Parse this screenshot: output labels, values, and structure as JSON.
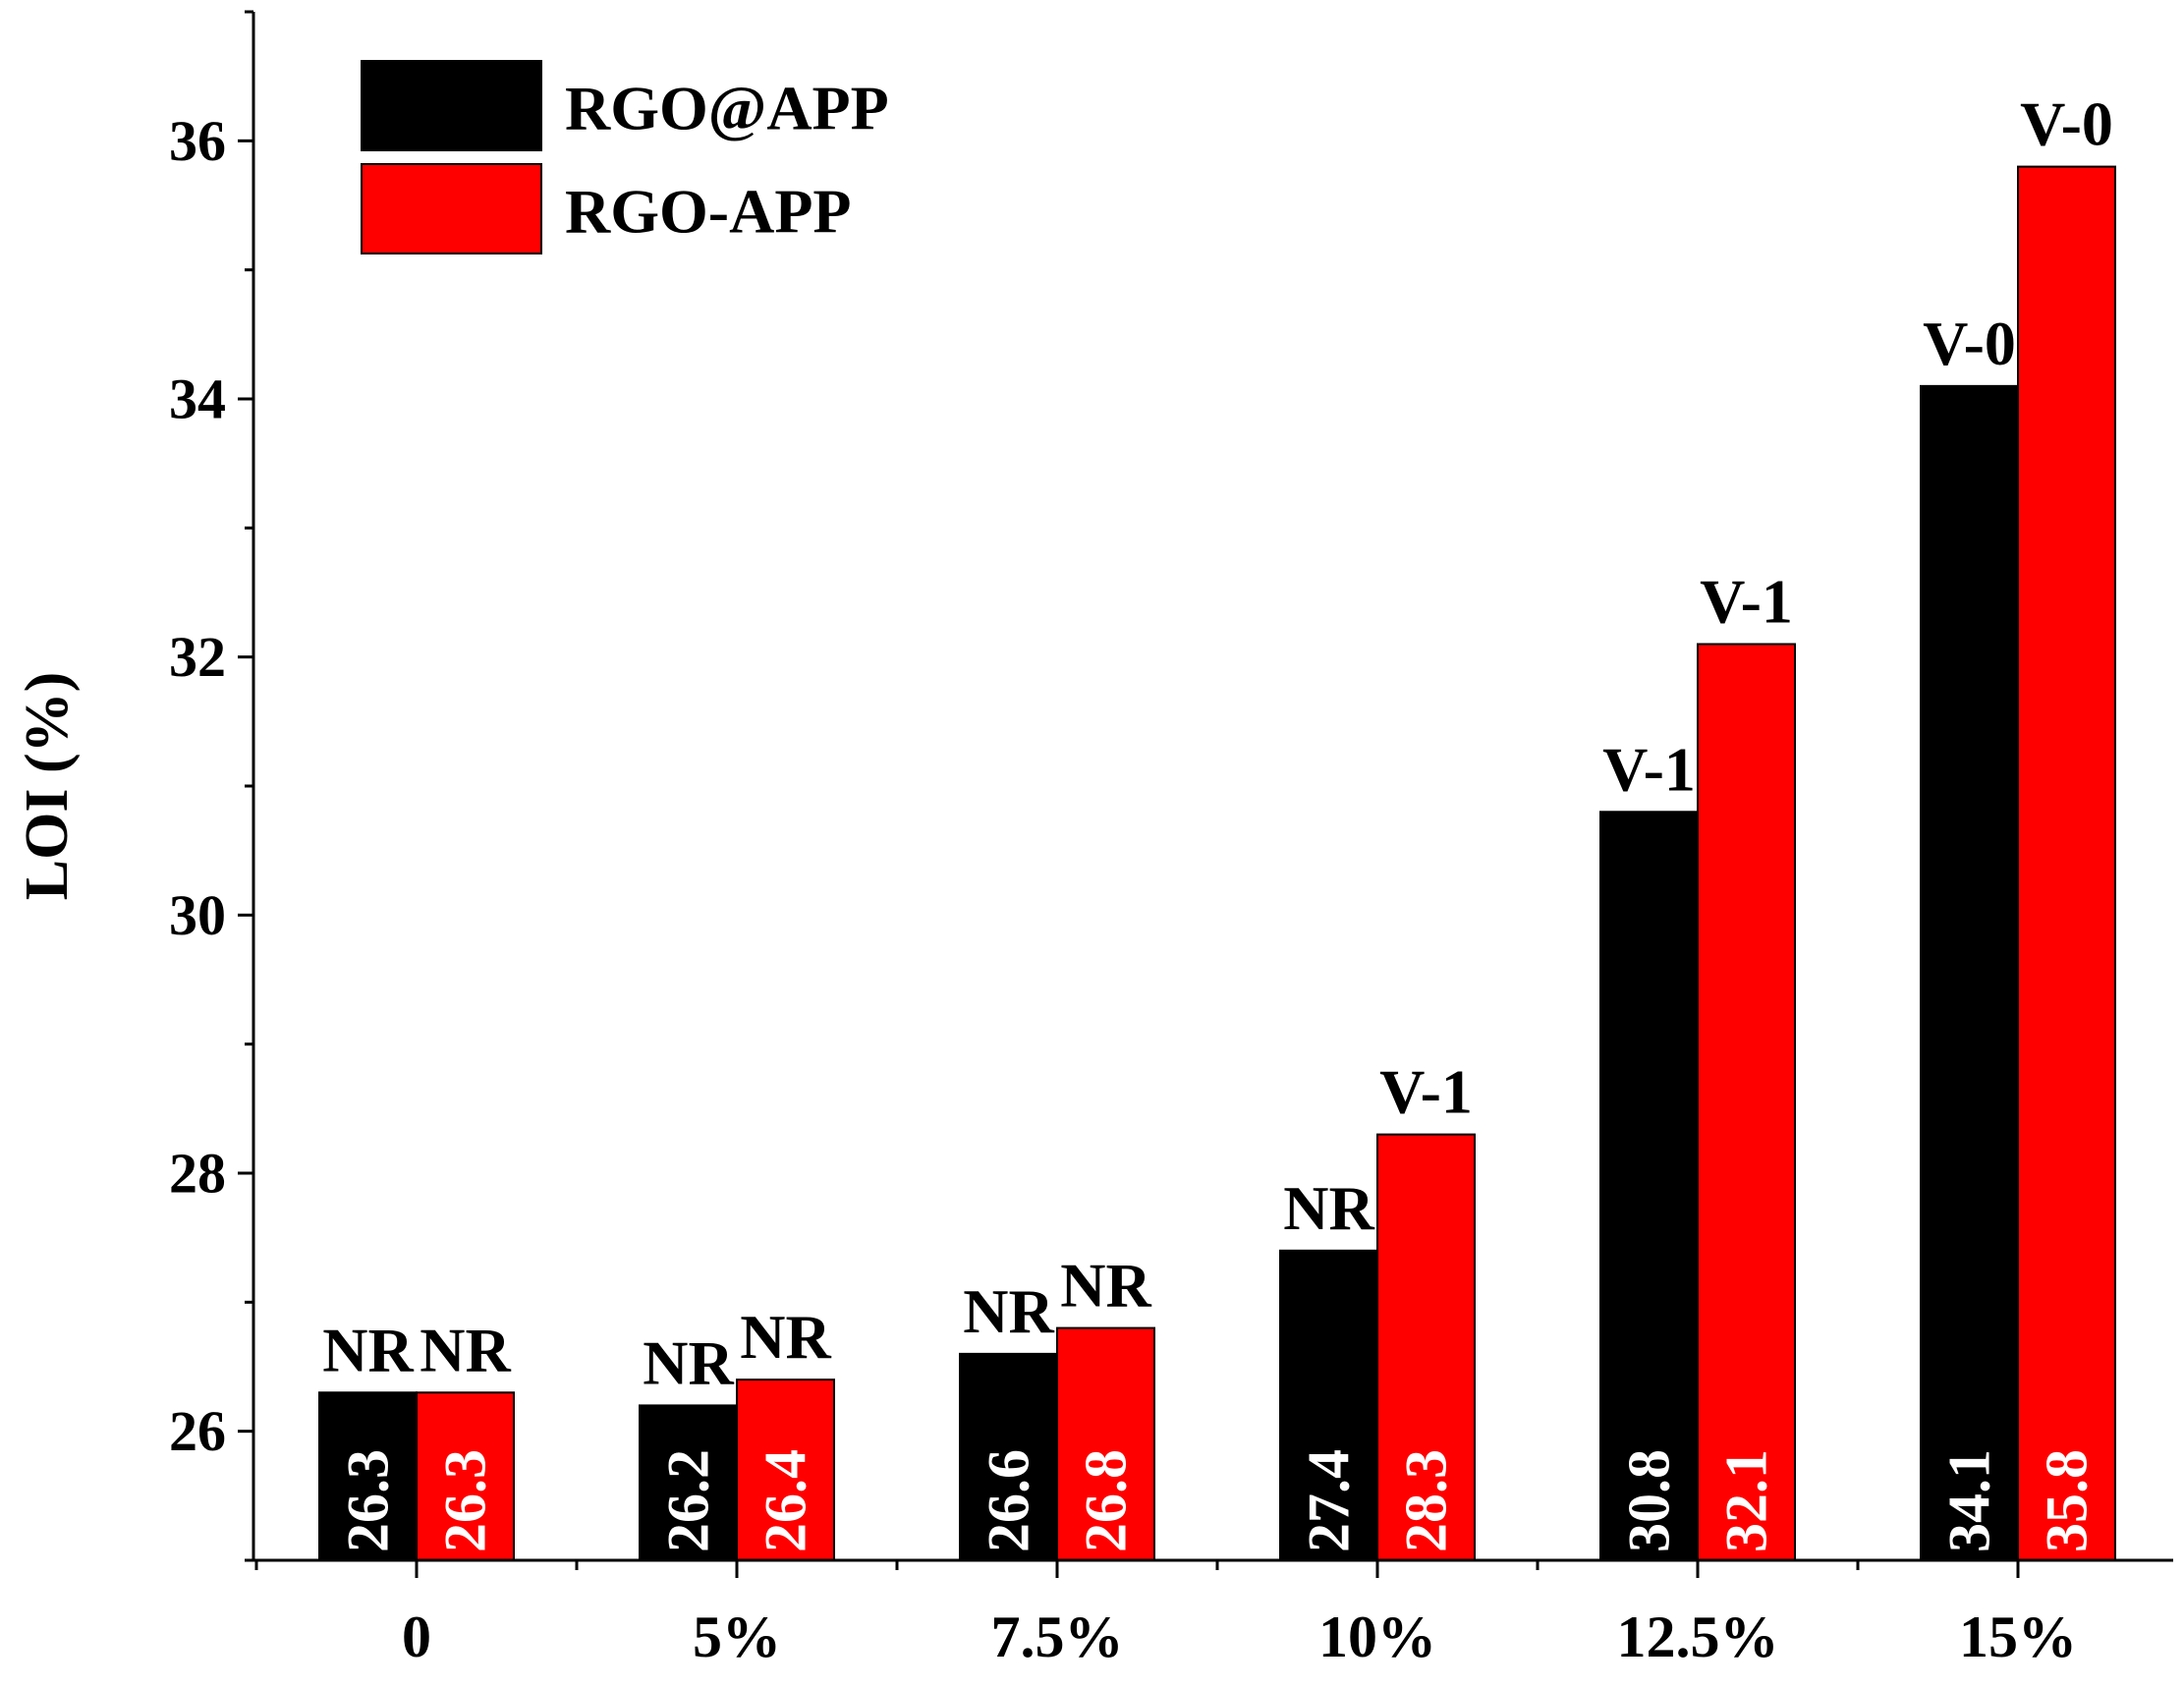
{
  "chart_data": {
    "type": "bar",
    "title": "",
    "xlabel": "",
    "ylabel": "LOI (%)",
    "ylim": [
      25,
      37
    ],
    "yticks": [
      26,
      28,
      30,
      32,
      34,
      36
    ],
    "grid": false,
    "legend_position": "top-left",
    "categories": [
      "0",
      "5%",
      "7.5%",
      "10%",
      "12.5%",
      "15%"
    ],
    "series": [
      {
        "name": "RGO@APP",
        "color": "#000000",
        "values": [
          26.3,
          26.2,
          26.6,
          27.4,
          30.8,
          34.1
        ],
        "value_labels": [
          "26.3",
          "26.2",
          "26.6",
          "27.4",
          "30.8",
          "34.1"
        ],
        "ratings": [
          "NR",
          "NR",
          "NR",
          "NR",
          "V-1",
          "V-0"
        ]
      },
      {
        "name": "RGO-APP",
        "color": "#ff0000",
        "values": [
          26.3,
          26.4,
          26.8,
          28.3,
          32.1,
          35.8
        ],
        "value_labels": [
          "26.3",
          "26.4",
          "26.8",
          "28.3",
          "32.1",
          "35.8"
        ],
        "ratings": [
          "NR",
          "NR",
          "NR",
          "V-1",
          "V-1",
          "V-0"
        ]
      }
    ]
  }
}
